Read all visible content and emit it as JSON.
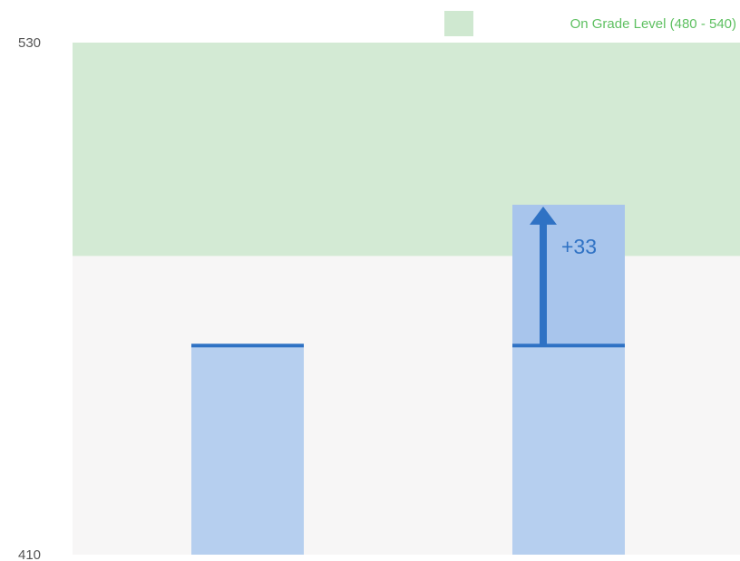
{
  "chart_data": {
    "type": "bar",
    "title": "",
    "xlabel": "",
    "ylabel": "",
    "ylim": [
      410,
      530
    ],
    "yticks": [
      {
        "value": 530,
        "label": "530"
      },
      {
        "value": 410,
        "label": "410"
      }
    ],
    "grid": false,
    "categories": [
      "",
      ""
    ],
    "bars": [
      {
        "value": 459
      },
      {
        "value": 492,
        "baseline_value": 459
      }
    ],
    "gain": {
      "bar_index": 1,
      "label": "+33"
    },
    "band": {
      "from": 480,
      "to": 540
    },
    "legend": {
      "label": "On Grade Level (480 - 540)",
      "position": "top-right"
    },
    "colors": {
      "band": "#d3ead4",
      "plot_background": "#f7f6f6",
      "bar": "#b6cfef",
      "gain_fill": "#a8c5ec",
      "marker": "#2f72c4",
      "legend_swatch": "#cfe8d0",
      "legend_text": "#5ec061"
    }
  }
}
